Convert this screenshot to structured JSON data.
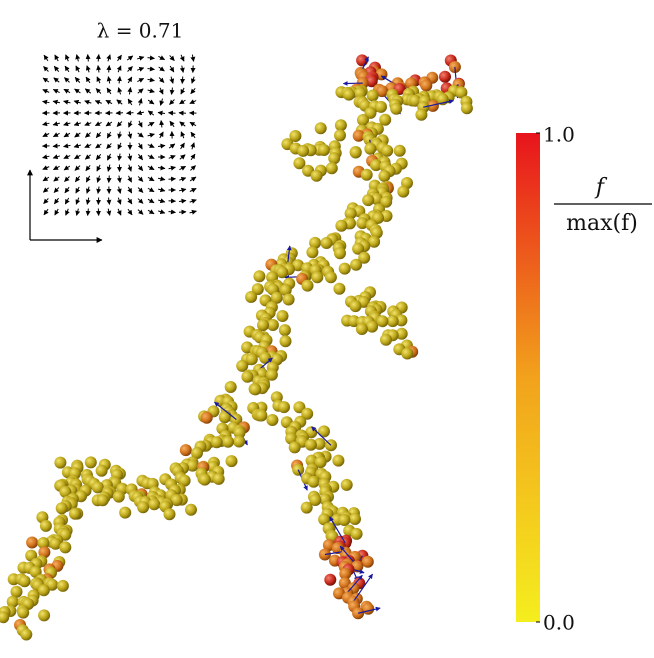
{
  "inset": {
    "label": "λ = 0.71"
  },
  "colorbar": {
    "label_numerator": "f",
    "label_denominator": "max(f)",
    "lim": [
      0,
      1
    ],
    "ticks": [
      {
        "value": 1,
        "label": "1.0"
      },
      {
        "value": 0,
        "label": "0.0"
      }
    ]
  }
}
